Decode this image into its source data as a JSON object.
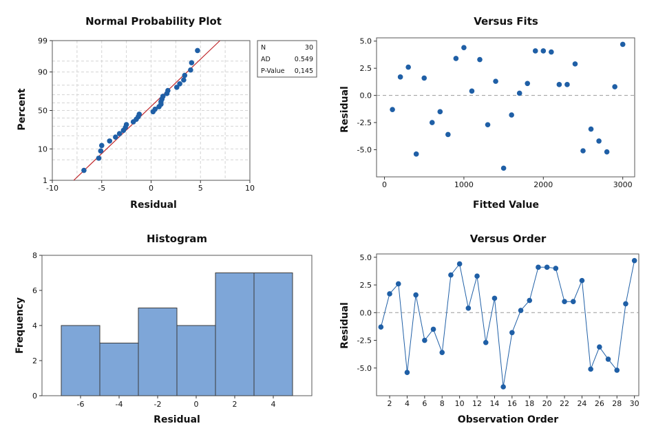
{
  "theme": {
    "point_color": "#1f5fa6",
    "line_color": "#1f5fa6",
    "fit_line_color": "#c0282c",
    "bar_fill": "#7ea6d8",
    "bar_stroke": "#3a3a3a",
    "grid_color": "#d4d4d4",
    "zero_line_color": "#9a9a9a"
  },
  "chart_data": [
    {
      "type": "scatter",
      "title": "Normal Probability Plot",
      "xlabel": "Residual",
      "ylabel": "Percent",
      "xlim": [
        -10,
        10
      ],
      "xticks": [
        -10,
        -5,
        0,
        5,
        10
      ],
      "yscale": "normal-probability",
      "ylim": [
        1,
        99
      ],
      "yticks": [
        1,
        10,
        50,
        90,
        99
      ],
      "grid": true,
      "fit_line": true,
      "stats_box": [
        {
          "label": "N",
          "value": "30"
        },
        {
          "label": "AD",
          "value": "0.549"
        },
        {
          "label": "P-Value",
          "value": "0,145"
        }
      ],
      "points": [
        -6.8,
        -5.3,
        -5.1,
        -5.0,
        -4.2,
        -3.6,
        -3.2,
        -2.8,
        -2.6,
        -2.5,
        -1.8,
        -1.5,
        -1.3,
        -1.2,
        0.2,
        0.4,
        0.8,
        1.0,
        1.0,
        1.1,
        1.2,
        1.6,
        1.7,
        2.6,
        2.9,
        3.3,
        3.4,
        4.0,
        4.1,
        4.7
      ]
    },
    {
      "type": "scatter",
      "title": "Versus Fits",
      "xlabel": "Fitted Value",
      "ylabel": "Residual",
      "xlim": [
        -100,
        3150
      ],
      "xticks": [
        0,
        1000,
        2000,
        3000
      ],
      "ylim": [
        -7.5,
        5.3
      ],
      "yticks": [
        "5.0",
        "2.5",
        "0.0",
        "-2.5",
        "-5.0"
      ],
      "reference_line": 0,
      "points": [
        [
          100,
          -1.3
        ],
        [
          200,
          1.7
        ],
        [
          300,
          2.6
        ],
        [
          400,
          -5.4
        ],
        [
          500,
          1.6
        ],
        [
          600,
          -2.5
        ],
        [
          700,
          -1.5
        ],
        [
          800,
          -3.6
        ],
        [
          900,
          3.4
        ],
        [
          1000,
          4.4
        ],
        [
          1100,
          0.4
        ],
        [
          1200,
          3.3
        ],
        [
          1300,
          -2.7
        ],
        [
          1400,
          1.3
        ],
        [
          1500,
          -6.7
        ],
        [
          1600,
          -1.8
        ],
        [
          1700,
          0.2
        ],
        [
          1800,
          1.1
        ],
        [
          1900,
          4.1
        ],
        [
          2000,
          4.1
        ],
        [
          2100,
          4.0
        ],
        [
          2200,
          1.0
        ],
        [
          2300,
          1.0
        ],
        [
          2400,
          2.9
        ],
        [
          2500,
          -5.1
        ],
        [
          2600,
          -3.1
        ],
        [
          2700,
          -4.2
        ],
        [
          2800,
          -5.2
        ],
        [
          2900,
          0.8
        ],
        [
          3000,
          4.7
        ]
      ]
    },
    {
      "type": "bar",
      "title": "Histogram",
      "xlabel": "Residual",
      "ylabel": "Frequency",
      "bin_edges": [
        -7,
        -5,
        -3,
        -1,
        1,
        3,
        5
      ],
      "values": [
        4,
        3,
        5,
        4,
        7,
        7
      ],
      "xticks": [
        -6,
        -4,
        -2,
        0,
        2,
        4
      ],
      "ylim": [
        0,
        8
      ],
      "yticks": [
        0,
        2,
        4,
        6,
        8
      ]
    },
    {
      "type": "line",
      "title": "Versus Order",
      "xlabel": "Observation Order",
      "ylabel": "Residual",
      "xlim": [
        0.5,
        30.5
      ],
      "xticks": [
        2,
        4,
        6,
        8,
        10,
        12,
        14,
        16,
        18,
        20,
        22,
        24,
        26,
        28,
        30
      ],
      "ylim": [
        -7.5,
        5.3
      ],
      "yticks": [
        "5.0",
        "2.5",
        "0.0",
        "-2.5",
        "-5.0"
      ],
      "reference_line": 0,
      "markers": true,
      "values": [
        -1.3,
        1.7,
        2.6,
        -5.4,
        1.6,
        -2.5,
        -1.5,
        -3.6,
        3.4,
        4.4,
        0.4,
        3.3,
        -2.7,
        1.3,
        -6.7,
        -1.8,
        0.2,
        1.1,
        4.1,
        4.1,
        4.0,
        1.0,
        1.0,
        2.9,
        -5.1,
        -3.1,
        -4.2,
        -5.2,
        0.8,
        4.7
      ]
    }
  ]
}
